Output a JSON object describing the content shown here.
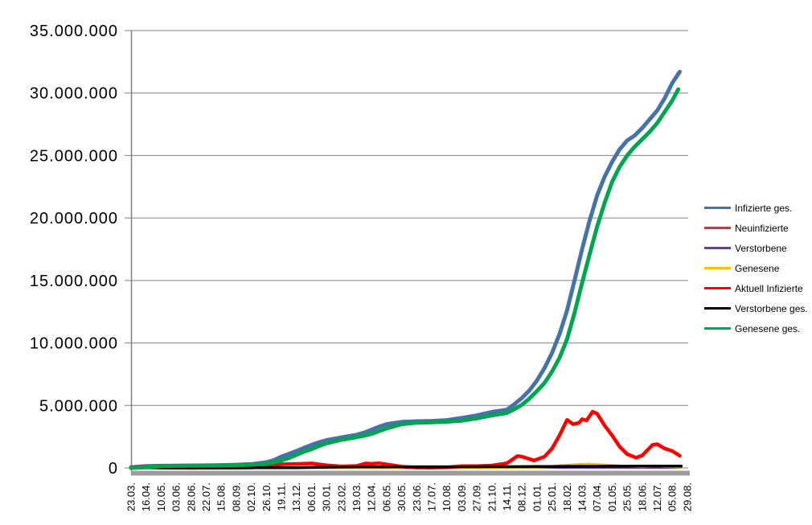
{
  "chart_data": {
    "type": "line",
    "title": "",
    "xlabel": "",
    "ylabel": "",
    "y_unit": "millions of persons",
    "x_unit": "dates at 24-day intervals (23.03.2020 - 29.08.2022), x stored as tick index",
    "ylim_millions": [
      0,
      35
    ],
    "grid": "horizontal",
    "legend_position": "right",
    "axis_color": "#808080",
    "x_axis_bar_color": "#9C9C9C",
    "text_color": "#000000",
    "y_tick_values_millions": [
      0,
      5,
      10,
      15,
      20,
      25,
      30,
      35
    ],
    "y_tick_labels": [
      "0",
      "5.000.000",
      "10.000.000",
      "15.000.000",
      "20.000.000",
      "25.000.000",
      "30.000.000",
      "35.000.000"
    ],
    "x_tick_labels": [
      "23.03.",
      "16.04.",
      "10.05.",
      "03.06.",
      "28.06.",
      "22.07.",
      "15.08.",
      "08.09.",
      "02.10.",
      "26.10.",
      "19.11.",
      "13.12.",
      "06.01.",
      "30.01.",
      "23.02.",
      "19.03.",
      "12.04.",
      "06.05.",
      "30.05.",
      "23.06.",
      "17.07.",
      "10.08.",
      "03.09.",
      "27.09.",
      "21.10.",
      "14.11.",
      "08.12.",
      "01.01.",
      "25.01.",
      "18.02.",
      "14.03.",
      "07.04.",
      "01.05.",
      "25.05.",
      "18.06.",
      "12.07.",
      "05.08.",
      "29.08."
    ],
    "series": [
      {
        "name": "Infizierte ges.",
        "color": "#4572A7",
        "width": 5,
        "points": [
          [
            0,
            0.05
          ],
          [
            1,
            0.14
          ],
          [
            2,
            0.17
          ],
          [
            3,
            0.18
          ],
          [
            4,
            0.19
          ],
          [
            5,
            0.2
          ],
          [
            6,
            0.22
          ],
          [
            7,
            0.25
          ],
          [
            8,
            0.3
          ],
          [
            9,
            0.45
          ],
          [
            9.5,
            0.62
          ],
          [
            10,
            0.9
          ],
          [
            10.5,
            1.12
          ],
          [
            11,
            1.35
          ],
          [
            11.5,
            1.6
          ],
          [
            12,
            1.84
          ],
          [
            12.5,
            2.05
          ],
          [
            13,
            2.22
          ],
          [
            14,
            2.44
          ],
          [
            15,
            2.65
          ],
          [
            15.5,
            2.82
          ],
          [
            16,
            3.05
          ],
          [
            16.5,
            3.3
          ],
          [
            17,
            3.5
          ],
          [
            18,
            3.68
          ],
          [
            19,
            3.73
          ],
          [
            20,
            3.76
          ],
          [
            21,
            3.82
          ],
          [
            22,
            4.0
          ],
          [
            23,
            4.2
          ],
          [
            24,
            4.48
          ],
          [
            25,
            4.65
          ],
          [
            25.5,
            5.1
          ],
          [
            26,
            5.6
          ],
          [
            26.5,
            6.2
          ],
          [
            27,
            7.0
          ],
          [
            27.5,
            8.0
          ],
          [
            28,
            9.2
          ],
          [
            28.5,
            10.7
          ],
          [
            29,
            12.6
          ],
          [
            29.5,
            15.0
          ],
          [
            30,
            17.5
          ],
          [
            30.5,
            19.8
          ],
          [
            31,
            21.8
          ],
          [
            31.5,
            23.3
          ],
          [
            32,
            24.5
          ],
          [
            32.5,
            25.5
          ],
          [
            33,
            26.2
          ],
          [
            33.5,
            26.6
          ],
          [
            34,
            27.2
          ],
          [
            34.5,
            27.9
          ],
          [
            35,
            28.6
          ],
          [
            35.5,
            29.6
          ],
          [
            36,
            30.8
          ],
          [
            36.5,
            31.7
          ]
        ]
      },
      {
        "name": "Neuinfizierte",
        "color": "#AA4643",
        "width": 3,
        "points": [
          [
            0,
            0.002
          ],
          [
            8,
            0.006
          ],
          [
            10,
            0.02
          ],
          [
            12,
            0.025
          ],
          [
            14,
            0.01
          ],
          [
            16,
            0.02
          ],
          [
            18,
            0.005
          ],
          [
            20,
            0.004
          ],
          [
            22,
            0.01
          ],
          [
            24,
            0.015
          ],
          [
            25,
            0.04
          ],
          [
            26,
            0.06
          ],
          [
            27,
            0.05
          ],
          [
            28,
            0.12
          ],
          [
            29,
            0.22
          ],
          [
            30,
            0.29
          ],
          [
            30.5,
            0.3
          ],
          [
            31,
            0.24
          ],
          [
            32,
            0.13
          ],
          [
            33,
            0.07
          ],
          [
            34,
            0.09
          ],
          [
            34.7,
            0.13
          ],
          [
            35,
            0.11
          ],
          [
            36,
            0.06
          ],
          [
            36.5,
            0.04
          ]
        ]
      },
      {
        "name": "Verstorbene",
        "color": "#7139A0",
        "width": 2,
        "points": [
          [
            0,
            0.001
          ],
          [
            10,
            0.001
          ],
          [
            20,
            0.001
          ],
          [
            30,
            0.002
          ],
          [
            36.5,
            0.002
          ]
        ]
      },
      {
        "name": "Genesene",
        "color": "#FFC000",
        "width": 3,
        "points": [
          [
            0,
            0.003
          ],
          [
            5,
            0.005
          ],
          [
            10,
            0.02
          ],
          [
            12,
            0.025
          ],
          [
            14,
            0.012
          ],
          [
            17,
            0.02
          ],
          [
            19,
            0.006
          ],
          [
            22,
            0.01
          ],
          [
            24,
            0.012
          ],
          [
            25,
            0.02
          ],
          [
            26,
            0.05
          ],
          [
            27,
            0.05
          ],
          [
            28,
            0.09
          ],
          [
            29,
            0.2
          ],
          [
            30,
            0.28
          ],
          [
            30.7,
            0.3
          ],
          [
            31,
            0.28
          ],
          [
            32,
            0.22
          ],
          [
            33,
            0.13
          ],
          [
            34,
            0.09
          ],
          [
            34.7,
            0.13
          ],
          [
            35,
            0.12
          ],
          [
            36,
            0.08
          ],
          [
            36.5,
            0.05
          ]
        ]
      },
      {
        "name": "Aktuell Infizierte",
        "color": "#FF0000",
        "width": 4.5,
        "points": [
          [
            0,
            0.045
          ],
          [
            1,
            0.075
          ],
          [
            2,
            0.025
          ],
          [
            3,
            0.012
          ],
          [
            4,
            0.008
          ],
          [
            5,
            0.01
          ],
          [
            6,
            0.015
          ],
          [
            7,
            0.021
          ],
          [
            8,
            0.035
          ],
          [
            9,
            0.1
          ],
          [
            10,
            0.29
          ],
          [
            11,
            0.32
          ],
          [
            12,
            0.36
          ],
          [
            13,
            0.21
          ],
          [
            14,
            0.12
          ],
          [
            15,
            0.16
          ],
          [
            15.6,
            0.36
          ],
          [
            16,
            0.33
          ],
          [
            16.5,
            0.37
          ],
          [
            17,
            0.28
          ],
          [
            18,
            0.1
          ],
          [
            19,
            0.025
          ],
          [
            20,
            0.012
          ],
          [
            21,
            0.04
          ],
          [
            22,
            0.14
          ],
          [
            23,
            0.15
          ],
          [
            24,
            0.19
          ],
          [
            25,
            0.37
          ],
          [
            25.7,
            0.95
          ],
          [
            26,
            0.9
          ],
          [
            26.8,
            0.6
          ],
          [
            27.5,
            0.9
          ],
          [
            28,
            1.55
          ],
          [
            28.5,
            2.6
          ],
          [
            29,
            3.85
          ],
          [
            29.4,
            3.5
          ],
          [
            29.8,
            3.6
          ],
          [
            30,
            3.9
          ],
          [
            30.3,
            3.8
          ],
          [
            30.7,
            4.5
          ],
          [
            31,
            4.35
          ],
          [
            31.5,
            3.4
          ],
          [
            32,
            2.6
          ],
          [
            32.5,
            1.7
          ],
          [
            33,
            1.1
          ],
          [
            33.6,
            0.82
          ],
          [
            34,
            1.0
          ],
          [
            34.7,
            1.85
          ],
          [
            35,
            1.9
          ],
          [
            35.5,
            1.55
          ],
          [
            36,
            1.35
          ],
          [
            36.5,
            0.98
          ]
        ]
      },
      {
        "name": "Verstorbene ges.",
        "color": "#000000",
        "width": 3.5,
        "points": [
          [
            0,
            0.002
          ],
          [
            1,
            0.004
          ],
          [
            2,
            0.008
          ],
          [
            4,
            0.009
          ],
          [
            8,
            0.01
          ],
          [
            9,
            0.01
          ],
          [
            10,
            0.014
          ],
          [
            11,
            0.022
          ],
          [
            12,
            0.037
          ],
          [
            13,
            0.056
          ],
          [
            14,
            0.069
          ],
          [
            15,
            0.075
          ],
          [
            16,
            0.079
          ],
          [
            17,
            0.084
          ],
          [
            18,
            0.088
          ],
          [
            20,
            0.091
          ],
          [
            22,
            0.092
          ],
          [
            24,
            0.095
          ],
          [
            25,
            0.098
          ],
          [
            26,
            0.104
          ],
          [
            27,
            0.112
          ],
          [
            28,
            0.117
          ],
          [
            29,
            0.121
          ],
          [
            30,
            0.126
          ],
          [
            31,
            0.131
          ],
          [
            32,
            0.135
          ],
          [
            33,
            0.138
          ],
          [
            34,
            0.14
          ],
          [
            35,
            0.142
          ],
          [
            36,
            0.146
          ],
          [
            36.6,
            0.148
          ]
        ]
      },
      {
        "name": "Genesene ges.",
        "color": "#00A550",
        "width": 5,
        "points": [
          [
            0,
            0.0
          ],
          [
            1,
            0.06
          ],
          [
            2,
            0.14
          ],
          [
            3,
            0.165
          ],
          [
            4,
            0.175
          ],
          [
            5,
            0.185
          ],
          [
            6,
            0.2
          ],
          [
            7,
            0.22
          ],
          [
            8,
            0.26
          ],
          [
            9,
            0.34
          ],
          [
            9.5,
            0.45
          ],
          [
            10,
            0.6
          ],
          [
            10.5,
            0.8
          ],
          [
            11,
            1.05
          ],
          [
            11.5,
            1.3
          ],
          [
            12,
            1.5
          ],
          [
            12.5,
            1.75
          ],
          [
            13,
            1.97
          ],
          [
            14,
            2.25
          ],
          [
            15,
            2.46
          ],
          [
            15.5,
            2.58
          ],
          [
            16,
            2.73
          ],
          [
            16.5,
            2.95
          ],
          [
            17,
            3.16
          ],
          [
            18,
            3.5
          ],
          [
            19,
            3.62
          ],
          [
            20,
            3.65
          ],
          [
            21,
            3.7
          ],
          [
            22,
            3.78
          ],
          [
            23,
            3.97
          ],
          [
            24,
            4.2
          ],
          [
            25,
            4.4
          ],
          [
            25.5,
            4.7
          ],
          [
            26,
            5.05
          ],
          [
            26.5,
            5.55
          ],
          [
            27,
            6.15
          ],
          [
            27.5,
            6.8
          ],
          [
            28,
            7.7
          ],
          [
            28.5,
            8.8
          ],
          [
            29,
            10.3
          ],
          [
            29.5,
            12.4
          ],
          [
            30,
            14.8
          ],
          [
            30.5,
            17.1
          ],
          [
            31,
            19.3
          ],
          [
            31.5,
            21.2
          ],
          [
            32,
            22.9
          ],
          [
            32.5,
            24.1
          ],
          [
            33,
            25.0
          ],
          [
            33.5,
            25.7
          ],
          [
            34,
            26.3
          ],
          [
            34.5,
            26.9
          ],
          [
            35,
            27.6
          ],
          [
            35.5,
            28.5
          ],
          [
            36,
            29.4
          ],
          [
            36.4,
            30.3
          ]
        ]
      }
    ]
  }
}
